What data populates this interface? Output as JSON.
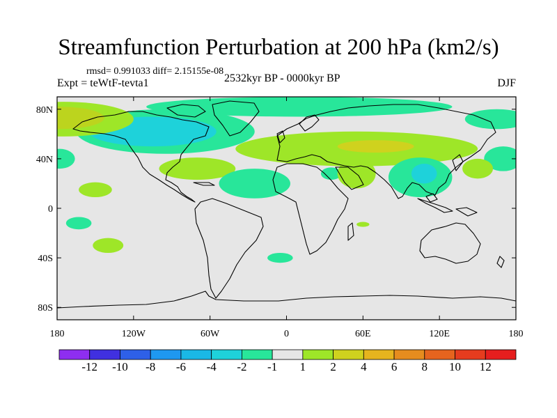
{
  "header": {
    "title": "Streamfunction Perturbation at 200 hPa (km2/s)",
    "stats": "rmsd= 0.991033 diff= 2.15155e-08",
    "experiment": "Expt = teWtF-tevta1",
    "period": "2532kyr BP - 0000kyr BP",
    "season": "DJF"
  },
  "map": {
    "background_color": "#e6e6e6",
    "x_ticks": [
      {
        "lon": -180,
        "label": "180"
      },
      {
        "lon": -120,
        "label": "120W"
      },
      {
        "lon": -60,
        "label": "60W"
      },
      {
        "lon": 0,
        "label": "0"
      },
      {
        "lon": 60,
        "label": "60E"
      },
      {
        "lon": 120,
        "label": "120E"
      },
      {
        "lon": 180,
        "label": "180"
      }
    ],
    "y_ticks": [
      {
        "lat": 80,
        "label": "80N"
      },
      {
        "lat": 40,
        "label": "40N"
      },
      {
        "lat": 0,
        "label": "0"
      },
      {
        "lat": -40,
        "label": "40S"
      },
      {
        "lat": -80,
        "label": "80S"
      }
    ],
    "anomalies": [
      {
        "name": "arctic-asia-positive",
        "lon": 10,
        "lat": 82,
        "rlon": 120,
        "rlat": 8,
        "color": "#28e69a"
      },
      {
        "name": "north-america-negative",
        "lon": -95,
        "lat": 62,
        "rlon": 70,
        "rlat": 18,
        "color": "#28e69a"
      },
      {
        "name": "north-america-core",
        "lon": -105,
        "lat": 62,
        "rlon": 50,
        "rlat": 12,
        "color": "#1ed2da"
      },
      {
        "name": "alaska-positive",
        "lon": -175,
        "lat": 72,
        "rlon": 55,
        "rlat": 14,
        "color": "#9ee628"
      },
      {
        "name": "alaska-core",
        "lon": -178,
        "lat": 73,
        "rlon": 35,
        "rlat": 9,
        "color": "#bcd41e"
      },
      {
        "name": "eurasia-positive",
        "lon": 55,
        "lat": 48,
        "rlon": 95,
        "rlat": 14,
        "color": "#9ee628"
      },
      {
        "name": "eurasia-core",
        "lon": 70,
        "lat": 50,
        "rlon": 30,
        "rlat": 5,
        "color": "#cfd21e"
      },
      {
        "name": "gulf-positive",
        "lon": -70,
        "lat": 32,
        "rlon": 30,
        "rlat": 9,
        "color": "#9ee628"
      },
      {
        "name": "atlantic-negative",
        "lon": -25,
        "lat": 20,
        "rlon": 28,
        "rlat": 12,
        "color": "#28e69a"
      },
      {
        "name": "arabia-negative",
        "lon": 35,
        "lat": 28,
        "rlon": 8,
        "rlat": 5,
        "color": "#28e69a"
      },
      {
        "name": "africa-positive",
        "lon": 55,
        "lat": 28,
        "rlon": 15,
        "rlat": 12,
        "color": "#9ee628"
      },
      {
        "name": "india-negative",
        "lon": 105,
        "lat": 25,
        "rlon": 25,
        "rlat": 16,
        "color": "#28e69a"
      },
      {
        "name": "india-core",
        "lon": 108,
        "lat": 28,
        "rlon": 10,
        "rlat": 8,
        "color": "#1ed2da"
      },
      {
        "name": "pacific-northeast-positive",
        "lon": 165,
        "lat": 72,
        "rlon": 25,
        "rlat": 8,
        "color": "#28e69a"
      },
      {
        "name": "pacific-east-negative",
        "lon": 170,
        "lat": 40,
        "rlon": 15,
        "rlat": 10,
        "color": "#28e69a"
      },
      {
        "name": "pacific-positive",
        "lon": 150,
        "lat": 32,
        "rlon": 12,
        "rlat": 8,
        "color": "#9ee628"
      },
      {
        "name": "west-pacific-negative",
        "lon": -178,
        "lat": 40,
        "rlon": 12,
        "rlat": 8,
        "color": "#28e69a"
      },
      {
        "name": "hawaii-positive",
        "lon": -150,
        "lat": 15,
        "rlon": 13,
        "rlat": 6,
        "color": "#9ee628"
      },
      {
        "name": "south-pacific-negative",
        "lon": -163,
        "lat": -12,
        "rlon": 10,
        "rlat": 5,
        "color": "#28e69a"
      },
      {
        "name": "south-pacific-positive",
        "lon": -140,
        "lat": -30,
        "rlon": 12,
        "rlat": 6,
        "color": "#9ee628"
      },
      {
        "name": "south-atlantic-negative",
        "lon": -5,
        "lat": -40,
        "rlon": 10,
        "rlat": 4,
        "color": "#28e69a"
      },
      {
        "name": "indian-ocean-positive",
        "lon": 60,
        "lat": -13,
        "rlon": 5,
        "rlat": 2,
        "color": "#9ee628"
      }
    ]
  },
  "colorbar": {
    "colors": [
      "#8e2ef0",
      "#4030e0",
      "#2e60e8",
      "#1e98f0",
      "#1ab8e6",
      "#1ed2da",
      "#28e69a",
      "#e6e6e6",
      "#9ee628",
      "#cfd21e",
      "#e6b41e",
      "#e68c1e",
      "#e6641e",
      "#e63c1e",
      "#e61e1e"
    ],
    "labels": [
      "-12",
      "-10",
      "-8",
      "-6",
      "-4",
      "-2",
      "-1",
      "1",
      "2",
      "4",
      "6",
      "8",
      "10",
      "12"
    ]
  }
}
